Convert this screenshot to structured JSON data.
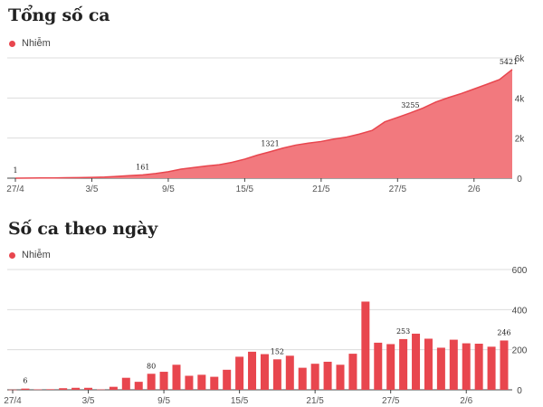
{
  "colors": {
    "series": "#e8464e",
    "area_fill": "#f2797e",
    "grid": "#dcdcdc",
    "axis": "#444444"
  },
  "cumulative": {
    "title": "Tổng số ca",
    "legend": "Nhiễm"
  },
  "daily": {
    "title": "Số ca theo ngày",
    "legend": "Nhiễm"
  },
  "chart_data": [
    {
      "type": "area",
      "title": "Tổng số ca",
      "legend": [
        "Nhiễm"
      ],
      "ylim": [
        0,
        6000
      ],
      "yticks": [
        0,
        2000,
        4000,
        6000
      ],
      "ytick_labels": [
        "0",
        "2k",
        "4k",
        "6k"
      ],
      "xtick_labels": [
        "27/4",
        "3/5",
        "9/5",
        "15/5",
        "21/5",
        "27/5",
        "2/6"
      ],
      "grid": true,
      "series": [
        {
          "name": "Nhiễm",
          "x": [
            "27/4",
            "28/4",
            "29/4",
            "30/4",
            "1/5",
            "2/5",
            "3/5",
            "4/5",
            "5/5",
            "6/5",
            "7/5",
            "8/5",
            "9/5",
            "10/5",
            "11/5",
            "12/5",
            "13/5",
            "14/5",
            "15/5",
            "16/5",
            "17/5",
            "18/5",
            "19/5",
            "20/5",
            "21/5",
            "22/5",
            "23/5",
            "24/5",
            "25/5",
            "26/5",
            "27/5",
            "28/5",
            "29/5",
            "30/5",
            "31/5",
            "1/6",
            "2/6",
            "3/6",
            "4/6",
            "5/6"
          ],
          "values": [
            1,
            7,
            9,
            12,
            20,
            30,
            40,
            55,
            90,
            130,
            161,
            230,
            320,
            450,
            530,
            610,
            670,
            790,
            950,
            1150,
            1321,
            1500,
            1650,
            1750,
            1830,
            1950,
            2050,
            2200,
            2380,
            2810,
            3030,
            3255,
            3500,
            3800,
            4020,
            4220,
            4450,
            4680,
            4920,
            5421
          ]
        }
      ],
      "data_labels": [
        {
          "x": "27/4",
          "value": 1,
          "text": "1"
        },
        {
          "x": "7/5",
          "value": 161,
          "text": "161"
        },
        {
          "x": "17/5",
          "value": 1321,
          "text": "1321"
        },
        {
          "x": "28/5",
          "value": 3255,
          "text": "3255"
        },
        {
          "x": "5/6",
          "value": 5421,
          "text": "5421"
        }
      ]
    },
    {
      "type": "bar",
      "title": "Số ca theo ngày",
      "legend": [
        "Nhiễm"
      ],
      "ylim": [
        0,
        600
      ],
      "yticks": [
        0,
        200,
        400,
        600
      ],
      "ytick_labels": [
        "0",
        "200",
        "400",
        "600"
      ],
      "xtick_labels": [
        "27/4",
        "3/5",
        "9/5",
        "15/5",
        "21/5",
        "27/5",
        "2/6"
      ],
      "grid": true,
      "series": [
        {
          "name": "Nhiễm",
          "x": [
            "27/4",
            "28/4",
            "29/4",
            "30/4",
            "1/5",
            "2/5",
            "3/5",
            "4/5",
            "5/5",
            "6/5",
            "7/5",
            "8/5",
            "9/5",
            "10/5",
            "11/5",
            "12/5",
            "13/5",
            "14/5",
            "15/5",
            "16/5",
            "17/5",
            "18/5",
            "19/5",
            "20/5",
            "21/5",
            "22/5",
            "23/5",
            "24/5",
            "25/5",
            "26/5",
            "27/5",
            "28/5",
            "29/5",
            "30/5",
            "31/5",
            "1/6",
            "2/6",
            "3/6",
            "4/6",
            "5/6"
          ],
          "values": [
            1,
            6,
            2,
            3,
            8,
            10,
            10,
            2,
            15,
            60,
            40,
            80,
            90,
            125,
            70,
            75,
            65,
            100,
            165,
            190,
            178,
            152,
            170,
            110,
            130,
            140,
            125,
            180,
            440,
            235,
            228,
            253,
            280,
            255,
            210,
            250,
            232,
            230,
            215,
            246
          ]
        }
      ],
      "data_labels": [
        {
          "x": "28/4",
          "value": 6,
          "text": "6"
        },
        {
          "x": "8/5",
          "value": 80,
          "text": "80"
        },
        {
          "x": "18/5",
          "value": 152,
          "text": "152"
        },
        {
          "x": "28/5",
          "value": 253,
          "text": "253"
        },
        {
          "x": "5/6",
          "value": 246,
          "text": "246"
        }
      ]
    }
  ]
}
